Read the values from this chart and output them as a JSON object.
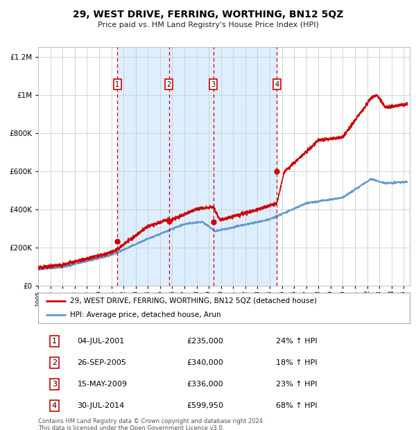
{
  "title": "29, WEST DRIVE, FERRING, WORTHING, BN12 5QZ",
  "subtitle": "Price paid vs. HM Land Registry's House Price Index (HPI)",
  "legend_line1": "29, WEST DRIVE, FERRING, WORTHING, BN12 5QZ (detached house)",
  "legend_line2": "HPI: Average price, detached house, Arun",
  "footer1": "Contains HM Land Registry data © Crown copyright and database right 2024.",
  "footer2": "This data is licensed under the Open Government Licence v3.0.",
  "transactions": [
    {
      "num": 1,
      "date": "04-JUL-2001",
      "price": 235000,
      "pct": "24%",
      "dir": "↑"
    },
    {
      "num": 2,
      "date": "26-SEP-2005",
      "price": 340000,
      "pct": "18%",
      "dir": "↑"
    },
    {
      "num": 3,
      "date": "15-MAY-2009",
      "price": 336000,
      "pct": "23%",
      "dir": "↑"
    },
    {
      "num": 4,
      "date": "30-JUL-2014",
      "price": 599950,
      "pct": "68%",
      "dir": "↑"
    }
  ],
  "transaction_dates_decimal": [
    2001.504,
    2005.732,
    2009.368,
    2014.579
  ],
  "shade_ranges": [
    [
      2001.504,
      2005.732
    ],
    [
      2005.732,
      2009.368
    ],
    [
      2009.368,
      2014.579
    ]
  ],
  "ylim": [
    0,
    1250000
  ],
  "xlim_start": 1995.0,
  "xlim_end": 2025.5,
  "red_color": "#cc0000",
  "blue_color": "#6699cc",
  "shade_color": "#ddeeff",
  "grid_color": "#cccccc",
  "background_color": "#ffffff"
}
